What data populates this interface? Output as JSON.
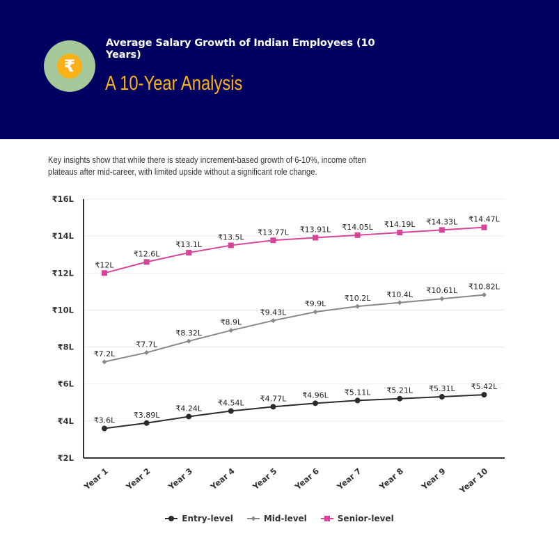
{
  "header": {
    "icon": "rupee-icon",
    "icon_glyph": "₹",
    "title": "Average Salary Growth of Indian Employees (10 Years)",
    "subtitle": "A 10-Year Analysis",
    "bg_color": "#000060",
    "accent_color": "#fbb116"
  },
  "description": "Key insights show that while there is steady increment-based growth of 6-10%, income often plateaus after mid-career, with limited upside without a significant role change.",
  "chart_data": {
    "type": "line",
    "title": "",
    "xlabel": "",
    "ylabel": "",
    "categories": [
      "Year 1",
      "Year 2",
      "Year 3",
      "Year 4",
      "Year 5",
      "Year 6",
      "Year 7",
      "Year 8",
      "Year 9",
      "Year 10"
    ],
    "ylim": [
      2,
      16
    ],
    "yticks": [
      2,
      4,
      6,
      8,
      10,
      12,
      14,
      16
    ],
    "ytick_format": "₹{v}L",
    "grid": true,
    "legend_position": "bottom",
    "series": [
      {
        "name": "Entry-level",
        "color": "#2b2b2b",
        "marker": "circle",
        "values": [
          3.6,
          3.89,
          4.24,
          4.54,
          4.77,
          4.96,
          5.11,
          5.21,
          5.31,
          5.42
        ],
        "labels": [
          "₹3.6L",
          "₹3.89L",
          "₹4.24L",
          "₹4.54L",
          "₹4.77L",
          "₹4.96L",
          "₹5.11L",
          "₹5.21L",
          "₹5.31L",
          "₹5.42L"
        ]
      },
      {
        "name": "Mid-level",
        "color": "#888888",
        "marker": "diamond",
        "values": [
          7.2,
          7.7,
          8.32,
          8.9,
          9.43,
          9.9,
          10.2,
          10.4,
          10.61,
          10.82
        ],
        "labels": [
          "₹7.2L",
          "₹7.7L",
          "₹8.32L",
          "₹8.9L",
          "₹9.43L",
          "₹9.9L",
          "₹10.2L",
          "₹10.4L",
          "₹10.61L",
          "₹10.82L"
        ]
      },
      {
        "name": "Senior-level",
        "color": "#d6449a",
        "marker": "square",
        "values": [
          12,
          12.6,
          13.1,
          13.5,
          13.77,
          13.91,
          14.05,
          14.19,
          14.33,
          14.47
        ],
        "labels": [
          "₹12L",
          "₹12.6L",
          "₹13.1L",
          "₹13.5L",
          "₹13.77L",
          "₹13.91L",
          "₹14.05L",
          "₹14.19L",
          "₹14.33L",
          "₹14.47L"
        ]
      }
    ]
  }
}
